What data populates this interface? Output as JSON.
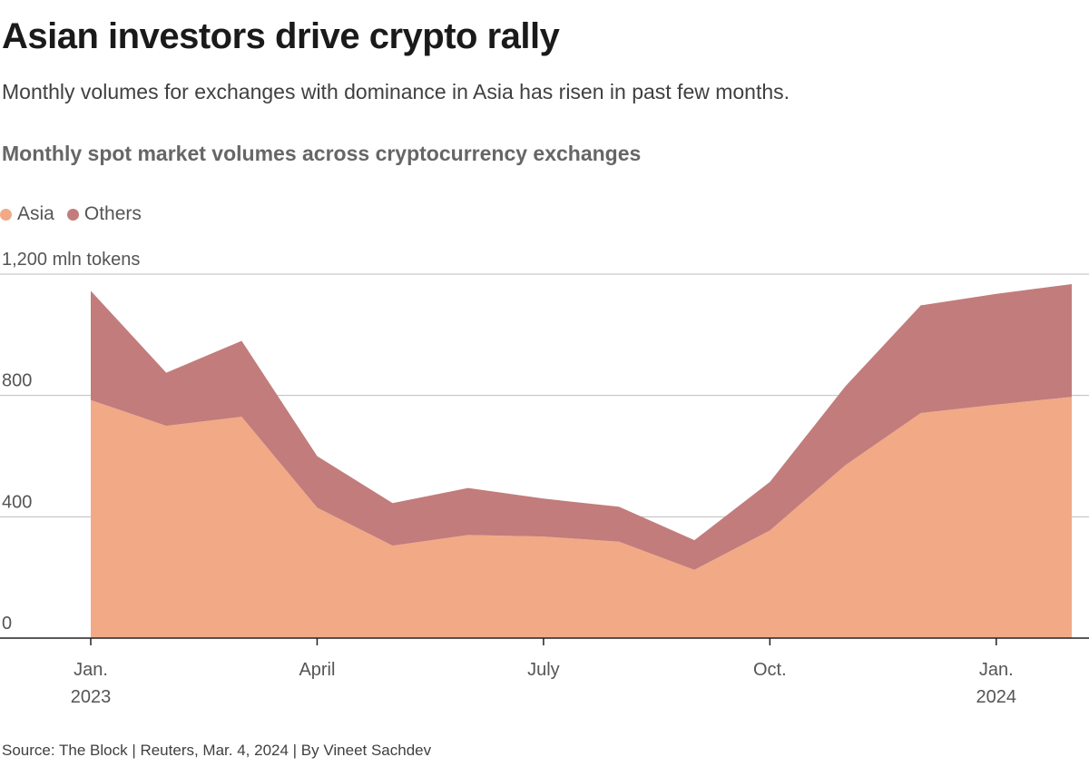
{
  "title": "Asian investors drive crypto rally",
  "subtitle": "Monthly volumes for exchanges with dominance in Asia has risen in past few months.",
  "chart_heading": "Monthly spot market volumes across cryptocurrency exchanges",
  "legend": [
    {
      "label": "Asia",
      "color": "#f2a986"
    },
    {
      "label": "Others",
      "color": "#c27c7c"
    }
  ],
  "source": "Source: The Block | Reuters, Mar. 4, 2024 | By Vineet Sachdev",
  "chart_data": {
    "type": "area",
    "stacked": true,
    "x": [
      "2023-01",
      "2023-02",
      "2023-03",
      "2023-04",
      "2023-05",
      "2023-06",
      "2023-07",
      "2023-08",
      "2023-09",
      "2023-10",
      "2023-11",
      "2023-12",
      "2024-01",
      "2024-02"
    ],
    "series": [
      {
        "name": "Asia",
        "color": "#f2a986",
        "values": [
          785,
          700,
          730,
          430,
          305,
          340,
          335,
          318,
          225,
          355,
          570,
          742,
          770,
          795
        ]
      },
      {
        "name": "Others",
        "color": "#c27c7c",
        "values": [
          360,
          175,
          250,
          170,
          140,
          155,
          125,
          115,
          98,
          160,
          260,
          355,
          365,
          372
        ]
      }
    ],
    "y_unit": "mln tokens",
    "ylim": [
      0,
      1200
    ],
    "y_ticks": [
      {
        "value": 0,
        "label": "0"
      },
      {
        "value": 400,
        "label": "400"
      },
      {
        "value": 800,
        "label": "800"
      },
      {
        "value": 1200,
        "label": "1,200 mln tokens"
      }
    ],
    "x_ticks": [
      {
        "month": "2023-01",
        "line1": "Jan.",
        "line2": "2023"
      },
      {
        "month": "2023-04",
        "line1": "April",
        "line2": ""
      },
      {
        "month": "2023-07",
        "line1": "July",
        "line2": ""
      },
      {
        "month": "2023-10",
        "line1": "Oct.",
        "line2": ""
      },
      {
        "month": "2024-01",
        "line1": "Jan.",
        "line2": "2024"
      }
    ],
    "grid": true
  }
}
